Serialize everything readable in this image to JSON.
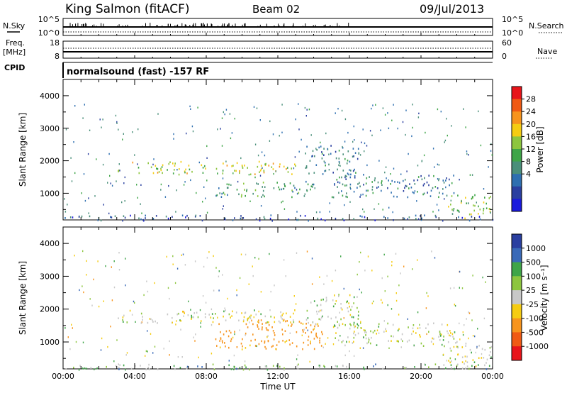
{
  "header": {
    "station": "King Salmon (fitACF)",
    "beam": "Beam 02",
    "date": "09/Jul/2013"
  },
  "noise_panel": {
    "left_label": "N.Sky",
    "left_ticks": [
      "10^5",
      "10^0"
    ],
    "right_label": "N.Search",
    "right_ticks": [
      "10^5",
      "10^0"
    ]
  },
  "freq_panel": {
    "left_label_1": "Freq.",
    "left_label_2": "[MHz]",
    "left_ticks": [
      "18",
      "8"
    ],
    "right_label": "Nave",
    "right_ticks": [
      "60",
      "0"
    ]
  },
  "cpid_panel": {
    "label": "CPID",
    "text": "normalsound (fast) -157 RF"
  },
  "colorbars": {
    "power": {
      "title": "Power [dB]",
      "ticks": [
        "28",
        "24",
        "20",
        "16",
        "12",
        "8",
        "4"
      ],
      "colors": [
        "#e8141a",
        "#f05a14",
        "#f7941d",
        "#f5cc12",
        "#8dc63f",
        "#3fa548",
        "#4a8f7a",
        "#2e6fb0",
        "#2a3fa0",
        "#1a1adc"
      ]
    },
    "velocity": {
      "title": "Velocity [m s⁻¹]",
      "ticks": [
        "1000",
        "500",
        "100",
        "25",
        "-25",
        "-100",
        "-500",
        "-1000"
      ],
      "colors": [
        "#2a3fa0",
        "#3a6ab8",
        "#3fa548",
        "#8dc63f",
        "#c8c8c8",
        "#f5cc12",
        "#f7941d",
        "#f05a14",
        "#e8141a"
      ]
    }
  },
  "chart_data": [
    {
      "type": "heatmap",
      "name": "power",
      "ylabel": "Slant Range [km]",
      "x_ticks": [
        "00:00",
        "04:00",
        "08:00",
        "12:00",
        "16:00",
        "20:00",
        "00:00"
      ],
      "y_ticks": [
        "1000",
        "2000",
        "3000",
        "4000"
      ],
      "ylim": [
        180,
        4500
      ],
      "xlim_hours": [
        0,
        24
      ],
      "scatter_bands": [
        {
          "t0": 3.0,
          "t1": 13.0,
          "r0": 1600,
          "r1": 2000,
          "value_db": 16
        },
        {
          "t0": 8.5,
          "t1": 14.0,
          "r0": 900,
          "r1": 1400,
          "value_db": 10
        },
        {
          "t0": 13.5,
          "t1": 16.5,
          "r0": 1500,
          "r1": 2500,
          "value_db": 8
        },
        {
          "t0": 15.0,
          "t1": 22.0,
          "r0": 900,
          "r1": 1600,
          "value_db": 6
        },
        {
          "t0": 21.5,
          "t1": 24.0,
          "r0": 200,
          "r1": 1000,
          "value_db": 14
        },
        {
          "t0": 0.0,
          "t1": 24.0,
          "r0": 180,
          "r1": 350,
          "value_db": 4
        }
      ]
    },
    {
      "type": "heatmap",
      "name": "velocity",
      "ylabel": "Slant Range [km]",
      "xlabel": "Time UT",
      "x_ticks": [
        "00:00",
        "04:00",
        "08:00",
        "12:00",
        "16:00",
        "20:00",
        "00:00"
      ],
      "y_ticks": [
        "1000",
        "2000",
        "3000",
        "4000"
      ],
      "ylim": [
        180,
        4500
      ],
      "xlim_hours": [
        0,
        24
      ],
      "scatter_bands": [
        {
          "t0": 3.0,
          "t1": 13.0,
          "r0": 1600,
          "r1": 2000,
          "value_ms": 0
        },
        {
          "t0": 8.5,
          "t1": 14.5,
          "r0": 800,
          "r1": 1700,
          "value_ms": -150
        },
        {
          "t0": 13.5,
          "t1": 16.5,
          "r0": 1500,
          "r1": 2500,
          "value_ms": 20
        },
        {
          "t0": 15.0,
          "t1": 22.0,
          "r0": 900,
          "r1": 1600,
          "value_ms": 0
        },
        {
          "t0": 21.5,
          "t1": 24.0,
          "r0": 200,
          "r1": 1000,
          "value_ms": 0
        },
        {
          "t0": 0.0,
          "t1": 24.0,
          "r0": 180,
          "r1": 350,
          "value_ms": 50
        }
      ]
    }
  ]
}
